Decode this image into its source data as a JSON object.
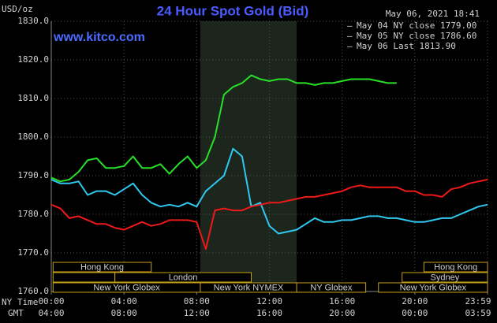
{
  "chart_data": {
    "type": "line",
    "title": "24 Hour Spot Gold (Bid)",
    "timestamp": "May 06, 2021 18:41",
    "source": "www.kitco.com",
    "ylabel": "USD/oz",
    "xlabel": "NY Time",
    "x2label": "GMT",
    "x": [
      0,
      0.5,
      1,
      1.5,
      2,
      2.5,
      3,
      3.5,
      4,
      4.5,
      5,
      5.5,
      6,
      6.5,
      7,
      7.5,
      8,
      8.5,
      9,
      9.5,
      10,
      10.5,
      11,
      11.5,
      12,
      12.5,
      13,
      13.5,
      14,
      14.5,
      15,
      15.5,
      16,
      16.5,
      17,
      17.5,
      18,
      18.5,
      19,
      19.5,
      20,
      20.5,
      21,
      21.5,
      22,
      22.5,
      23,
      23.5,
      24
    ],
    "series": [
      {
        "name": "May 04 NY close 1779.00",
        "color": "#2ec8f0",
        "values": [
          1789,
          1788,
          1788,
          1788.5,
          1785,
          1786,
          1786,
          1785,
          1786.5,
          1788,
          1785,
          1783,
          1782,
          1782.5,
          1782,
          1783,
          1782,
          1786,
          1788,
          1790,
          1797,
          1795,
          1782,
          1783,
          1777,
          1775,
          1775.5,
          1776,
          1777.5,
          1779,
          1778,
          1778,
          1778.5,
          1778.5,
          1779,
          1779.5,
          1779.5,
          1779,
          1779,
          1778.5,
          1778,
          1778,
          1778.5,
          1779,
          1779,
          1780,
          1781,
          1782,
          1782.5
        ]
      },
      {
        "name": "May 05 NY close 1786.60",
        "color": "#f01818",
        "values": [
          1782.5,
          1781.5,
          1779,
          1779.5,
          1778.5,
          1777.5,
          1777.5,
          1776.5,
          1776,
          1777,
          1778,
          1777,
          1777.5,
          1778.5,
          1778.5,
          1778.5,
          1778,
          1771,
          1781,
          1781.5,
          1781,
          1781,
          1782,
          1782.5,
          1783,
          1783,
          1783.5,
          1784,
          1784.5,
          1784.5,
          1785,
          1785.5,
          1786,
          1787,
          1787.5,
          1787,
          1787,
          1787,
          1787,
          1786,
          1786,
          1785,
          1785,
          1784.5,
          1786.5,
          1787,
          1788,
          1788.5,
          1789
        ]
      },
      {
        "name": "May 06 Last 1813.90",
        "color": "#28e028",
        "values": [
          1789.5,
          1788.5,
          1789,
          1791,
          1794,
          1794.5,
          1792,
          1792,
          1792.5,
          1795,
          1792,
          1792,
          1793,
          1790.5,
          1793,
          1795,
          1792,
          1794,
          1800,
          1811,
          1813,
          1814,
          1816,
          1815,
          1814.5,
          1815,
          1815,
          1814,
          1814,
          1813.5,
          1814,
          1814,
          1814.5,
          1815,
          1815,
          1815,
          1814.5,
          1814,
          1814,
          null,
          null,
          null,
          null,
          null,
          null,
          null,
          null,
          null,
          null
        ]
      }
    ],
    "xlim": [
      0,
      24
    ],
    "ylim": [
      1760,
      1830
    ],
    "yticks": [
      {
        "value": 1760,
        "label": "1760.0"
      },
      {
        "value": 1770,
        "label": "1770.0"
      },
      {
        "value": 1780,
        "label": "1780.0"
      },
      {
        "value": 1790,
        "label": "1790.0"
      },
      {
        "value": 1800,
        "label": "1800.0"
      },
      {
        "value": 1810,
        "label": "1810.0"
      },
      {
        "value": 1820,
        "label": "1820.0"
      },
      {
        "value": 1830,
        "label": "1830.0"
      }
    ],
    "xticks": [
      {
        "value": 0,
        "label": "00:00"
      },
      {
        "value": 4,
        "label": "04:00"
      },
      {
        "value": 8,
        "label": "08:00"
      },
      {
        "value": 12,
        "label": "12:00"
      },
      {
        "value": 16,
        "label": "16:00"
      },
      {
        "value": 20,
        "label": "20:00"
      },
      {
        "value": 24,
        "label": "23:59"
      }
    ],
    "x2ticks": [
      {
        "value": 0,
        "label": "04:00"
      },
      {
        "value": 4,
        "label": "08:00"
      },
      {
        "value": 8,
        "label": "12:00"
      },
      {
        "value": 12,
        "label": "16:00"
      },
      {
        "value": 16,
        "label": "20:00"
      },
      {
        "value": 20,
        "label": "00:00"
      },
      {
        "value": 24,
        "label": "03:59"
      }
    ],
    "grid": true,
    "session_rows": [
      [
        {
          "label": "Hong Kong",
          "start": 0.1,
          "end": 5.5
        },
        {
          "label": "Hong Kong",
          "start": 20.5,
          "end": 24
        }
      ],
      [
        {
          "label": null,
          "start": 0.1,
          "end": 3.5
        },
        {
          "label": "London",
          "start": 3.5,
          "end": 11
        },
        {
          "label": "Sydney",
          "start": 19.3,
          "end": 24
        }
      ],
      [
        {
          "label": "New York Globex",
          "start": 0.1,
          "end": 8.2
        },
        {
          "label": "New York NYMEX",
          "start": 8.2,
          "end": 13.5
        },
        {
          "label": "NY Globex",
          "start": 13.5,
          "end": 17.3
        },
        {
          "label": "New York Globex",
          "start": 18,
          "end": 24
        }
      ]
    ],
    "highlight_session": "New York NYMEX"
  }
}
